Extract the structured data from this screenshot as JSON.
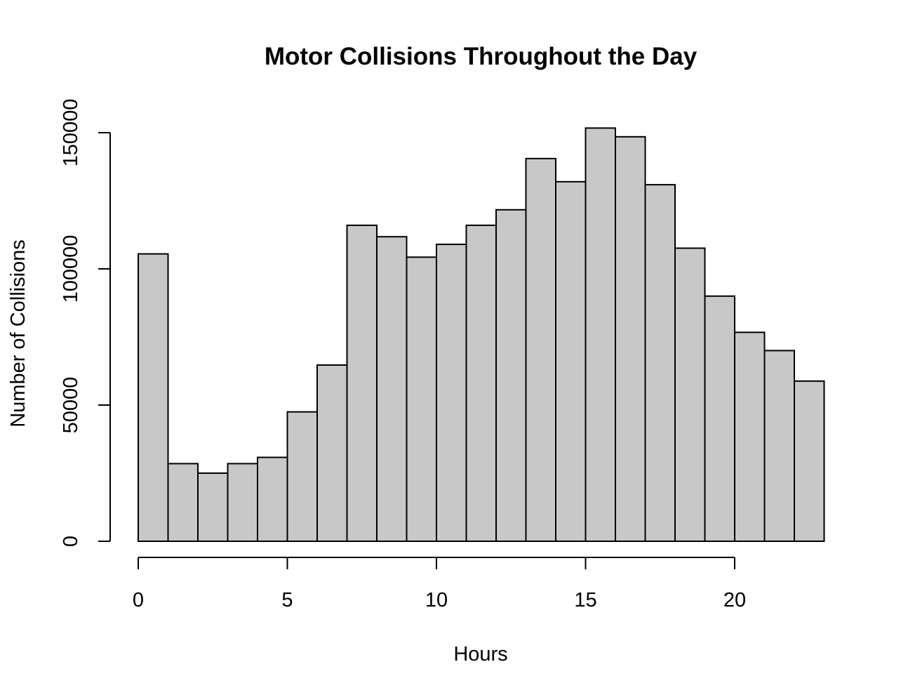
{
  "chart_data": {
    "type": "bar",
    "title": "Motor Collisions Throughout the Day",
    "xlabel": "Hours",
    "ylabel": "Number of Collisions",
    "x_bins": [
      [
        0,
        1
      ],
      [
        1,
        2
      ],
      [
        2,
        3
      ],
      [
        3,
        4
      ],
      [
        4,
        5
      ],
      [
        5,
        6
      ],
      [
        6,
        7
      ],
      [
        7,
        8
      ],
      [
        8,
        9
      ],
      [
        9,
        10
      ],
      [
        10,
        11
      ],
      [
        11,
        12
      ],
      [
        12,
        13
      ],
      [
        13,
        14
      ],
      [
        14,
        15
      ],
      [
        15,
        16
      ],
      [
        16,
        17
      ],
      [
        17,
        18
      ],
      [
        18,
        19
      ],
      [
        19,
        20
      ],
      [
        20,
        21
      ],
      [
        21,
        22
      ],
      [
        22,
        23
      ]
    ],
    "values": [
      105500,
      28500,
      25000,
      28500,
      30800,
      47500,
      64700,
      116000,
      111800,
      104300,
      109000,
      116000,
      121700,
      140500,
      132000,
      151700,
      148500,
      130900,
      107600,
      90000,
      76700,
      70000,
      58800
    ],
    "xlim": [
      0,
      23
    ],
    "ylim": [
      0,
      150000
    ],
    "x_ticks": [
      0,
      5,
      10,
      15,
      20
    ],
    "x_tick_labels": [
      "0",
      "5",
      "10",
      "15",
      "20"
    ],
    "y_ticks": [
      0,
      50000,
      100000,
      150000
    ],
    "y_tick_labels": [
      "0",
      "50000",
      "100000",
      "150000"
    ],
    "bar_color": "#c8c8c8",
    "edge_color": "#000000",
    "grid": false,
    "legend": "none"
  }
}
